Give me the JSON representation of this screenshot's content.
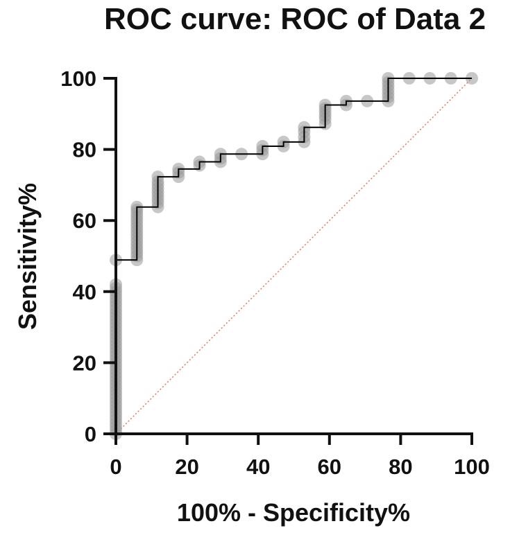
{
  "chart_data": {
    "type": "line",
    "title": "ROC curve: ROC of Data 2",
    "xlabel": "100% - Specificity%",
    "ylabel": "Sensitivity%",
    "xlim": [
      0,
      100
    ],
    "ylim": [
      0,
      100
    ],
    "x_ticks": [
      "0",
      "20",
      "40",
      "60",
      "80",
      "100"
    ],
    "y_ticks": [
      "0",
      "20",
      "40",
      "60",
      "80",
      "100"
    ],
    "grid": false,
    "legend": "none",
    "series": [
      {
        "style": "step-line-with-markers",
        "color": "#000000",
        "marker_color": "#999999",
        "x": [
          0,
          0,
          0,
          0,
          0,
          0,
          0,
          0,
          0,
          0,
          0,
          0,
          0,
          0,
          0,
          0,
          0,
          0,
          0,
          0,
          0,
          0,
          0,
          0,
          0,
          0,
          0,
          0,
          0,
          0,
          0,
          0,
          0,
          0,
          0,
          0,
          0,
          0,
          0,
          0,
          0,
          0,
          0,
          0,
          5.9,
          5.9,
          5.9,
          5.9,
          5.9,
          5.9,
          5.9,
          5.9,
          5.9,
          5.9,
          5.9,
          5.9,
          5.9,
          5.9,
          5.9,
          5.9,
          11.8,
          11.8,
          11.8,
          11.8,
          11.8,
          11.8,
          11.8,
          11.8,
          11.8,
          17.6,
          17.6,
          17.6,
          23.5,
          23.5,
          29.4,
          29.4,
          29.4,
          35.3,
          41.2,
          41.2,
          41.2,
          47.1,
          47.1,
          52.9,
          52.9,
          52.9,
          52.9,
          58.8,
          58.8,
          58.8,
          58.8,
          58.8,
          58.8,
          64.7,
          64.7,
          70.6,
          76.5,
          76.5,
          76.5,
          76.5,
          76.5,
          76.5,
          76.5,
          82.4,
          88.2,
          94.1,
          100
        ],
        "y": [
          0,
          1,
          2,
          3,
          4,
          5,
          6,
          7,
          8,
          9,
          10,
          11,
          12,
          13,
          14,
          15,
          16,
          17,
          18,
          19,
          20,
          21,
          22,
          23,
          24,
          25,
          26,
          27,
          28,
          29,
          30,
          31,
          32,
          33,
          34,
          35,
          36,
          37,
          38,
          39,
          40,
          41,
          42,
          48.9,
          48.9,
          50,
          51,
          52,
          53,
          54,
          55,
          56,
          57,
          58,
          59,
          60,
          61,
          62,
          63,
          63.8,
          63.8,
          65,
          66,
          67,
          68,
          69,
          70,
          71,
          72.3,
          72.3,
          73.5,
          74.5,
          75.5,
          76.5,
          76.5,
          77.5,
          78.7,
          78.7,
          78.7,
          79.8,
          80.9,
          80.9,
          82.1,
          82.1,
          83.5,
          85,
          86.2,
          87.2,
          88.5,
          89.5,
          90.5,
          91.5,
          92.5,
          92.5,
          93.6,
          93.6,
          93.6,
          94.7,
          95.7,
          96.8,
          97.9,
          98.9,
          100,
          100,
          100,
          100,
          100
        ]
      },
      {
        "style": "dotted-reference-line",
        "color": "#e8735a",
        "x": [
          0,
          100
        ],
        "y": [
          0,
          100
        ]
      }
    ]
  }
}
